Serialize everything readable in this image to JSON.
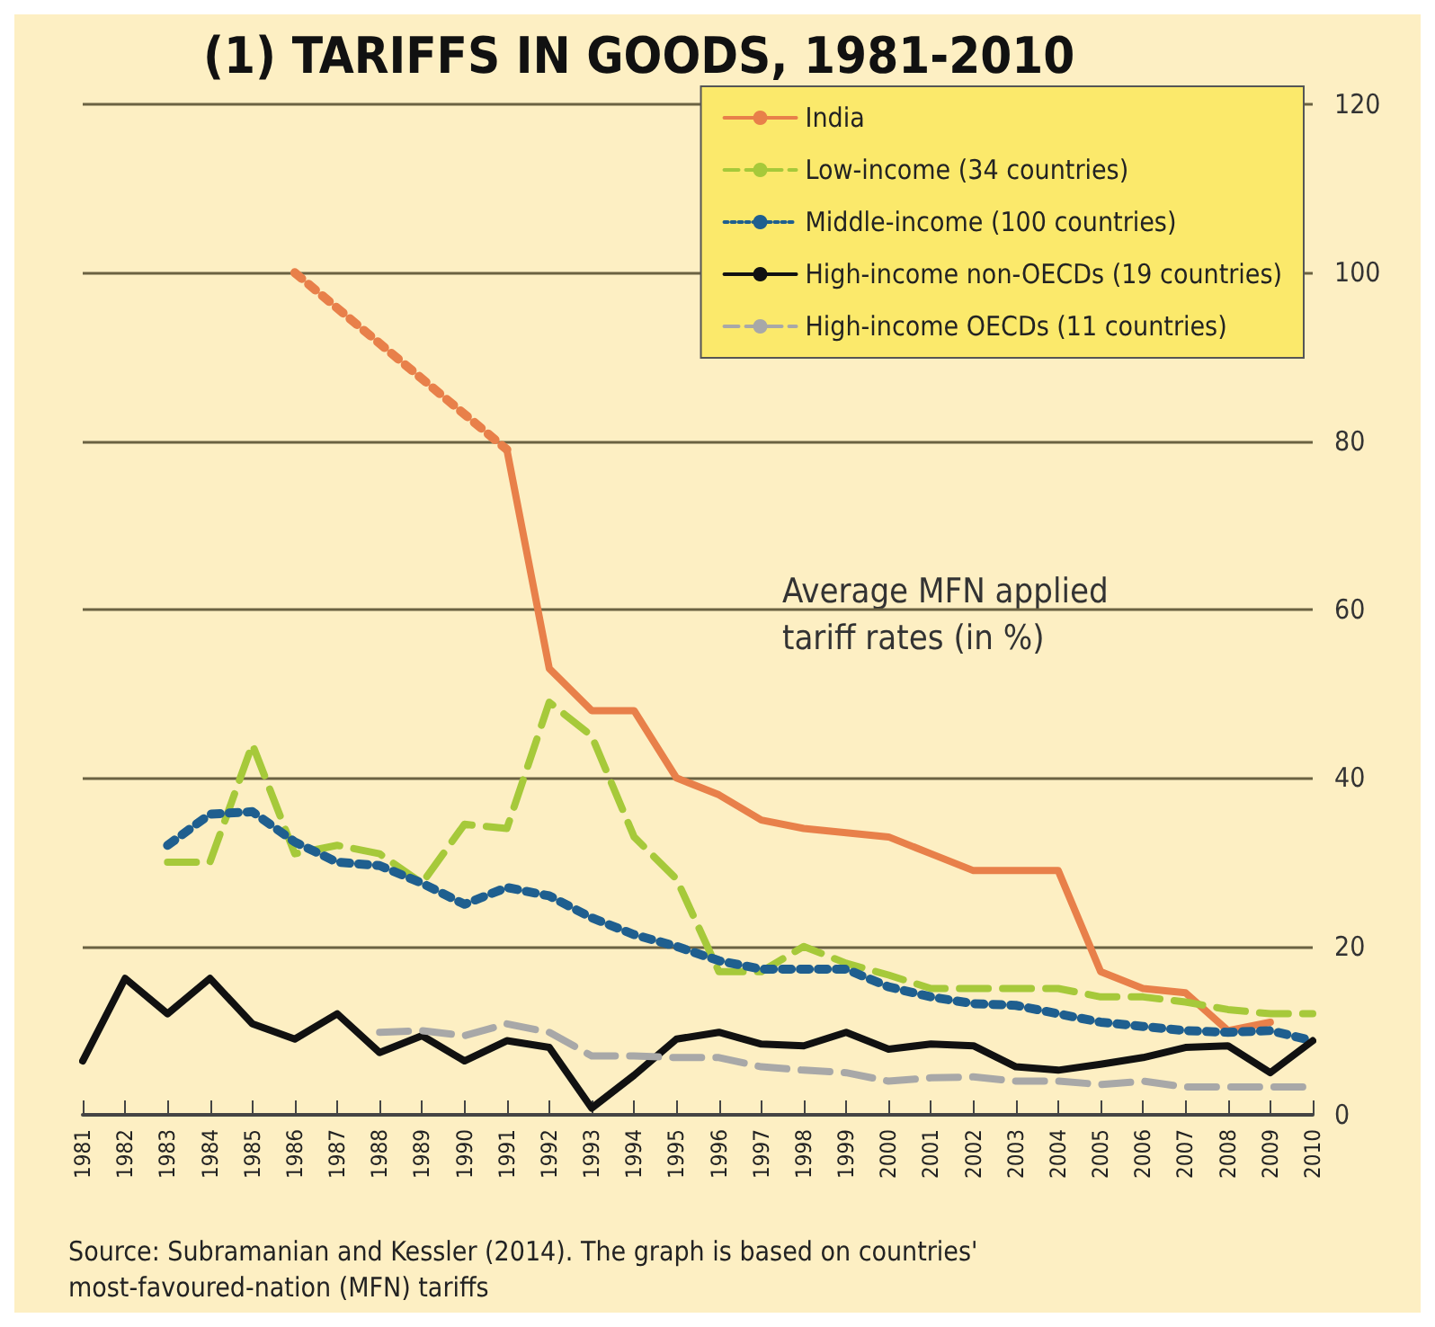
{
  "chart_data": {
    "type": "line",
    "title": "(1) TARIFFS IN GOODS, 1981-2010",
    "ylabel": "Average MFN applied tariff rates (in %)",
    "categories": [
      "1981",
      "1982",
      "1983",
      "1984",
      "1985",
      "1986",
      "1987",
      "1988",
      "1989",
      "1990",
      "1991",
      "1992",
      "1993",
      "1994",
      "1995",
      "1996",
      "1997",
      "1998",
      "1999",
      "2000",
      "2001",
      "2002",
      "2003",
      "2004",
      "2005",
      "2006",
      "2007",
      "2008",
      "2009",
      "2010"
    ],
    "series": [
      {
        "color": "#e8804a",
        "line_style": "dotted",
        "values": [
          null,
          null,
          null,
          null,
          null,
          100,
          null,
          null,
          null,
          null,
          79,
          null,
          null,
          null,
          null,
          null,
          null,
          null,
          null,
          null,
          null,
          null,
          null,
          null,
          null,
          null,
          null,
          null,
          null,
          null
        ]
      },
      {
        "name": "India",
        "color": "#e8804a",
        "line_style": "solid",
        "values": [
          null,
          null,
          null,
          null,
          null,
          null,
          null,
          null,
          null,
          null,
          79,
          53,
          48,
          48,
          40,
          38,
          35,
          34,
          33.5,
          33,
          31,
          29,
          29,
          29,
          17,
          15,
          14.5,
          10,
          11,
          null
        ]
      },
      {
        "name": "Low-income (34 countries)",
        "color": "#a6c93a",
        "line_style": "dashed",
        "values": [
          null,
          null,
          30,
          30,
          44,
          31,
          32,
          31,
          27.5,
          34.5,
          34,
          49,
          45,
          33,
          28,
          17,
          17,
          20,
          18,
          16.6,
          15,
          15,
          15,
          15,
          14,
          14,
          13.4,
          12.5,
          12,
          12
        ]
      },
      {
        "name": "Middle-income (100 countries)",
        "color": "#1f5f8f",
        "line_style": "dotted",
        "values": [
          null,
          null,
          32,
          35.7,
          36,
          32.4,
          30,
          29.6,
          27.5,
          25,
          27,
          26,
          23.4,
          21.4,
          20,
          18.3,
          17.3,
          17.3,
          17.3,
          15.2,
          14,
          13.2,
          13,
          12,
          11,
          10.5,
          10,
          9.8,
          10,
          8.8
        ]
      },
      {
        "name": "High-income non-OECDs (19 countries)",
        "color": "#111111",
        "line_style": "solid",
        "values": [
          6.4,
          16.2,
          12,
          16.2,
          10.8,
          9,
          12,
          7.4,
          9.4,
          6.4,
          8.8,
          8,
          0.8,
          4.7,
          9,
          9.8,
          8.4,
          8.2,
          9.8,
          7.8,
          8.4,
          8.2,
          5.7,
          5.3,
          6,
          6.8,
          8,
          8.2,
          5,
          8.8
        ]
      },
      {
        "name": "High-income OECDs (11 countries)",
        "color": "#a8a8a8",
        "line_style": "dashed",
        "values": [
          null,
          null,
          null,
          null,
          null,
          null,
          null,
          9.8,
          10,
          9.4,
          10.8,
          9.8,
          7,
          7,
          6.8,
          6.8,
          5.7,
          5.3,
          5,
          4,
          4.4,
          4.5,
          4,
          4,
          3.6,
          4,
          3.3,
          3.3,
          3.3,
          3.3
        ]
      }
    ],
    "ylim": [
      0,
      120
    ],
    "yticks": [
      0,
      20,
      40,
      60,
      80,
      100,
      120
    ],
    "grid": "y",
    "legend": "top right",
    "marker": "none",
    "annotations": [
      "Source: Subramanian and Kessler (2014). The graph is based on countries' most-favoured-nation (MFN) tariffs"
    ]
  }
}
